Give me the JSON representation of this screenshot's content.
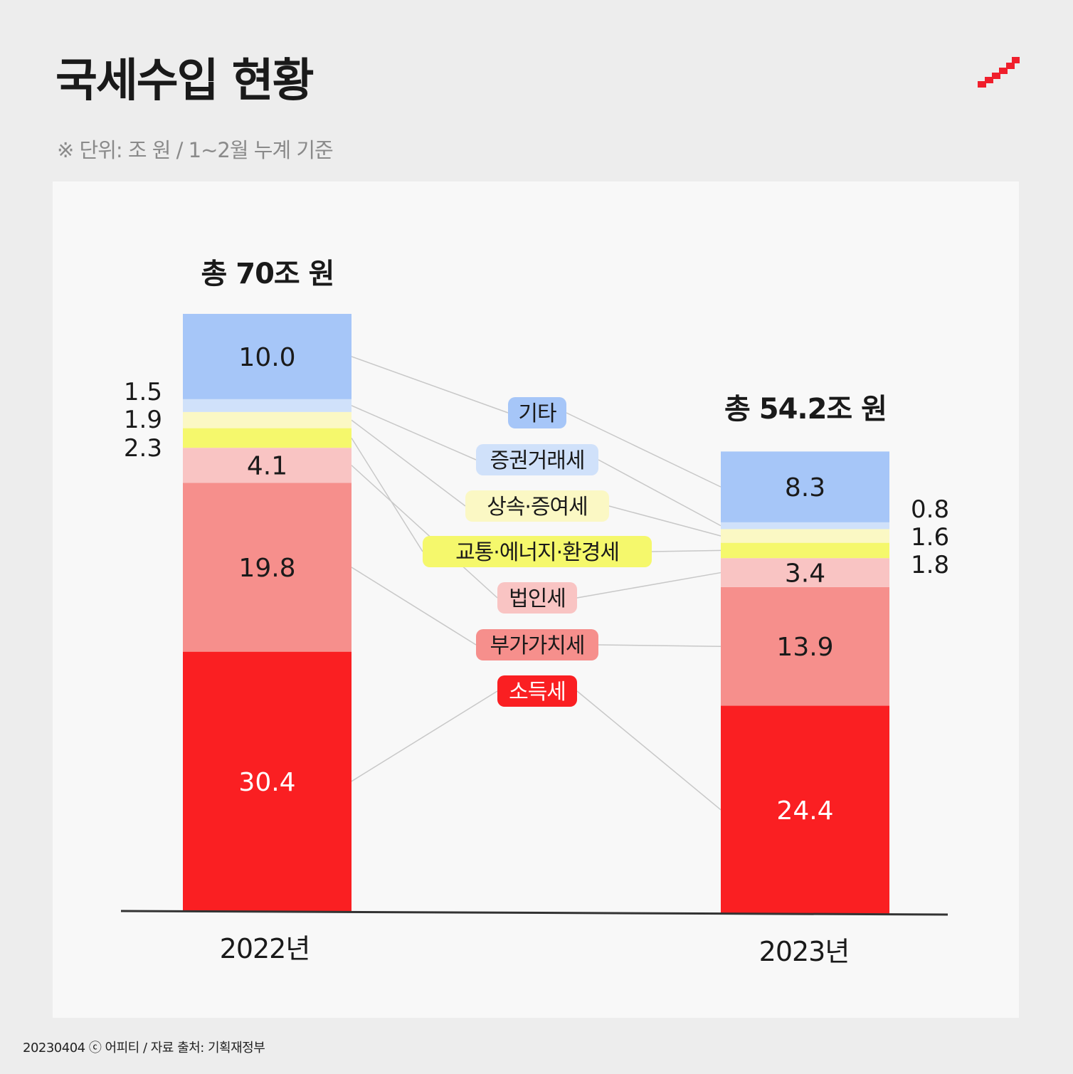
{
  "header": {
    "title": "국세수입 현황",
    "subtitle": "※ 단위: 조 원 / 1~2월 누계 기준"
  },
  "footer": {
    "credit": "20230404 ⓒ 어피티 / 자료 출처: 기획재정부"
  },
  "colors": {
    "소득세": "#fa1f22",
    "부가가치세": "#f68f8c",
    "법인세": "#f9c4c3",
    "교통·에너지·환경세": "#f5f86c",
    "상속·증여세": "#fbf8c4",
    "증권거래세": "#d0e1fa",
    "기타": "#a6c6f8",
    "axis": "#333333",
    "connector": "#c8c8c8"
  },
  "chart_data": {
    "type": "bar",
    "stacked": true,
    "categories": [
      "2022년",
      "2023년"
    ],
    "totals": [
      "총 70조 원",
      "총 54.2조 원"
    ],
    "series": [
      {
        "name": "소득세",
        "values": [
          30.4,
          24.4
        ],
        "labels": [
          "30.4",
          "24.4"
        ]
      },
      {
        "name": "부가가치세",
        "values": [
          19.8,
          13.9
        ],
        "labels": [
          "19.8",
          "13.9"
        ]
      },
      {
        "name": "법인세",
        "values": [
          4.1,
          3.4
        ],
        "labels": [
          "4.1",
          "3.4"
        ]
      },
      {
        "name": "교통·에너지·환경세",
        "values": [
          2.3,
          1.8
        ],
        "labels": [
          "2.3",
          "1.8"
        ]
      },
      {
        "name": "상속·증여세",
        "values": [
          1.9,
          1.6
        ],
        "labels": [
          "1.9",
          "1.6"
        ]
      },
      {
        "name": "증권거래세",
        "values": [
          1.5,
          0.8
        ],
        "labels": [
          "1.5",
          "0.8"
        ]
      },
      {
        "name": "기타",
        "values": [
          10.0,
          8.3
        ],
        "labels": [
          "10.0",
          "8.3"
        ]
      }
    ],
    "legend_placement": "center",
    "grid": false
  }
}
